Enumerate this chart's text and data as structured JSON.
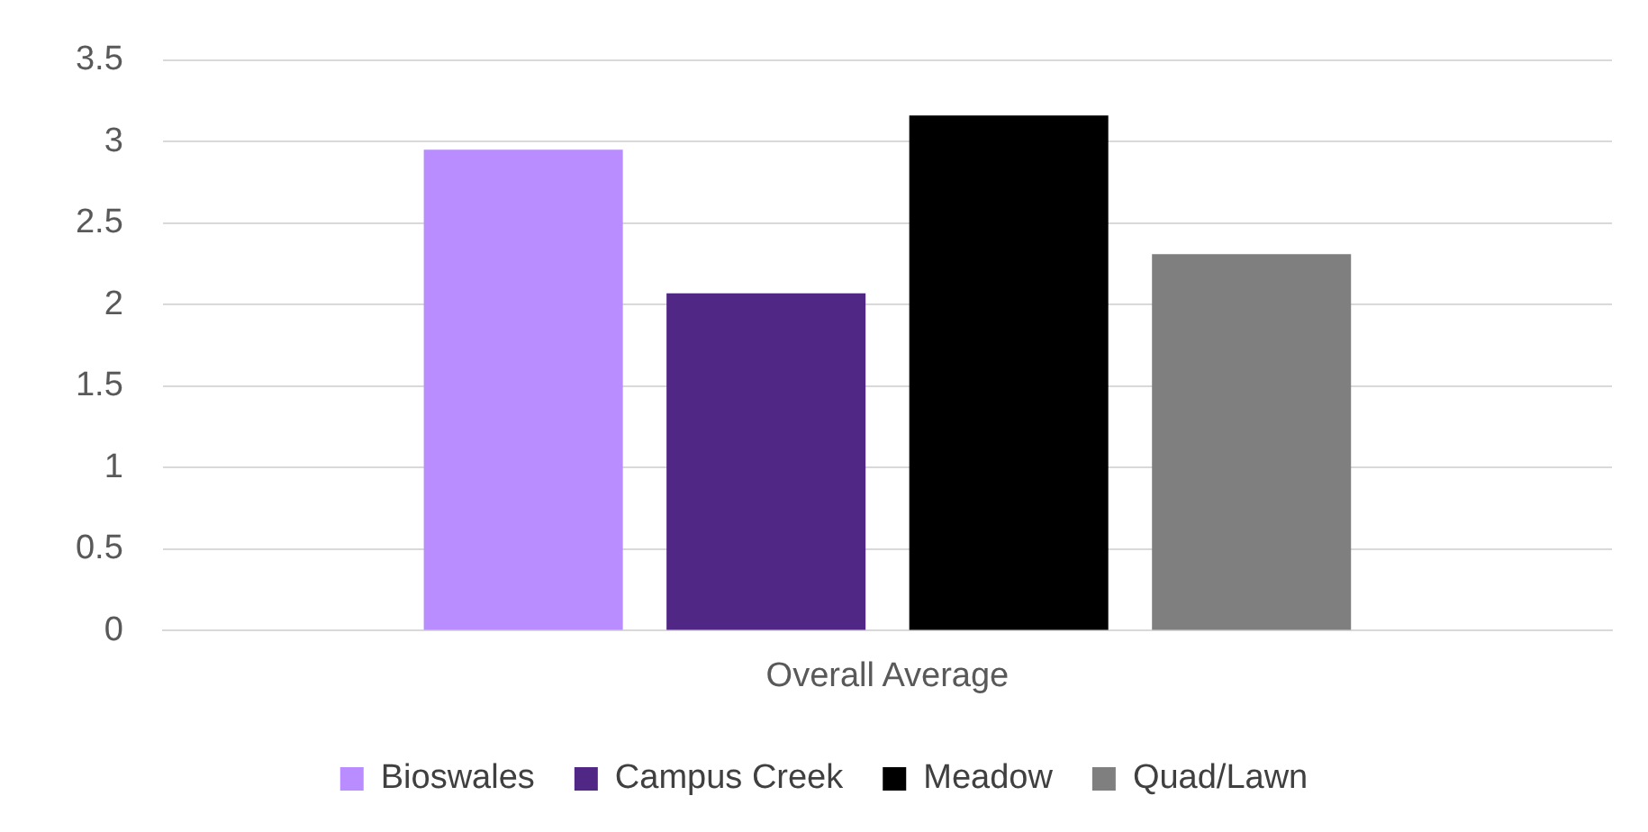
{
  "chart_data": {
    "type": "bar",
    "categories": [
      "Overall Average"
    ],
    "series": [
      {
        "name": "Bioswales",
        "color": "#b98cff",
        "values": [
          2.95
        ]
      },
      {
        "name": "Campus Creek",
        "color": "#512786",
        "values": [
          2.07
        ]
      },
      {
        "name": "Meadow",
        "color": "#000000",
        "values": [
          3.16
        ]
      },
      {
        "name": "Quad/Lawn",
        "color": "#7f7f7f",
        "values": [
          2.31
        ]
      }
    ],
    "ylim": [
      0,
      3.5
    ],
    "yticks": [
      0,
      0.5,
      1,
      1.5,
      2,
      2.5,
      3,
      3.5
    ],
    "grid": "y",
    "legend": "bottom"
  }
}
